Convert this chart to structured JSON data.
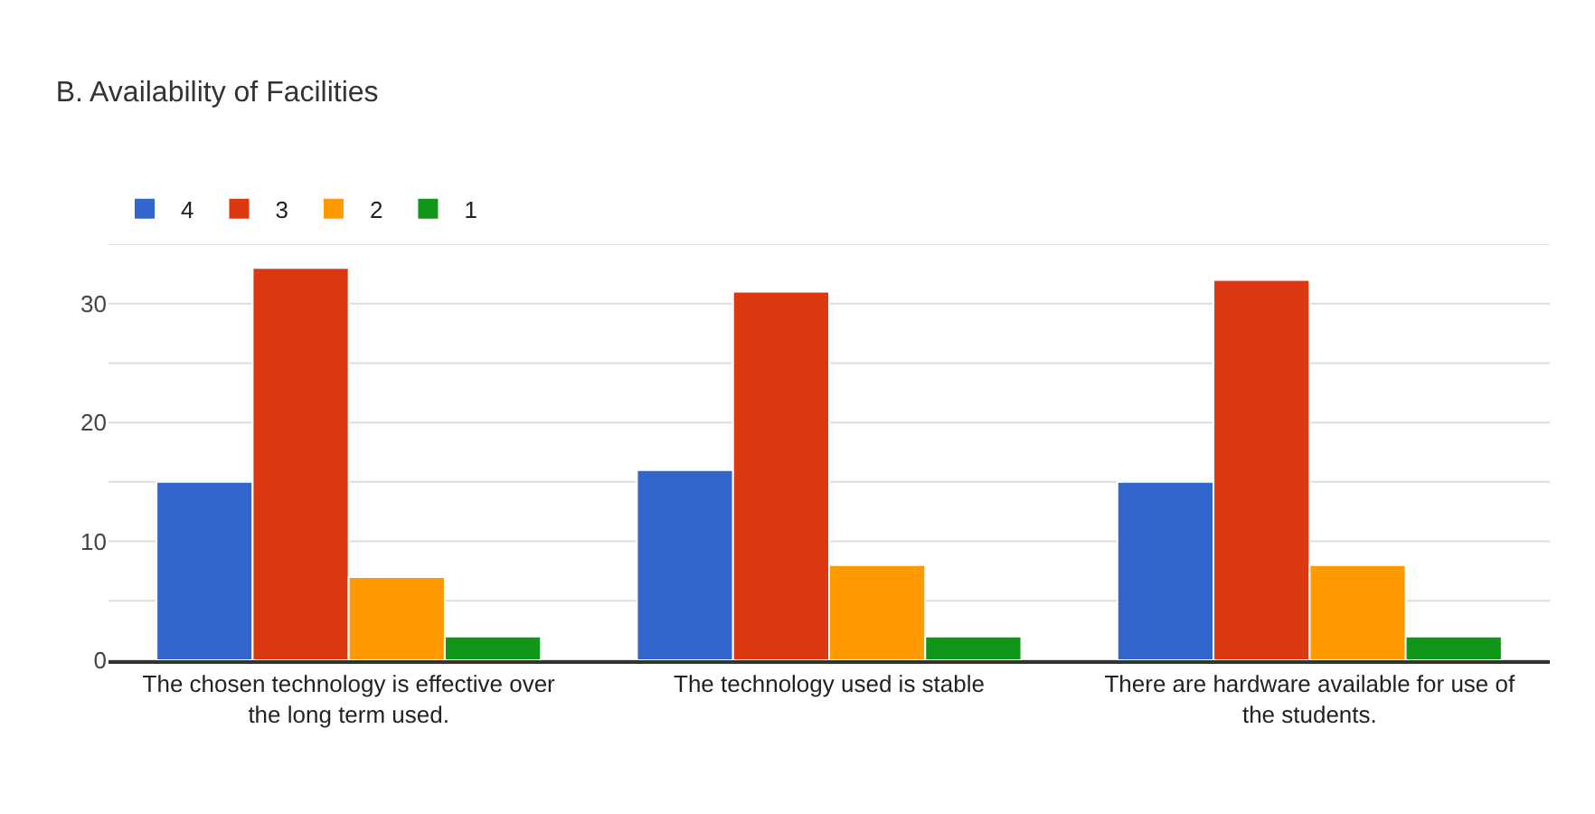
{
  "chart_data": {
    "type": "bar",
    "title": "B. Availability of Facilities",
    "categories": [
      "The chosen technology is effective over the long term used.",
      "The technology used is stable",
      "There are hardware available for use of the students."
    ],
    "series": [
      {
        "name": "4",
        "color": "#3366cc",
        "values": [
          15,
          16,
          15
        ]
      },
      {
        "name": "3",
        "color": "#dc3912",
        "values": [
          33,
          31,
          32
        ]
      },
      {
        "name": "2",
        "color": "#ff9900",
        "values": [
          7,
          8,
          8
        ]
      },
      {
        "name": "1",
        "color": "#109618",
        "values": [
          2,
          2,
          2
        ]
      }
    ],
    "ylim": [
      0,
      35
    ],
    "yticks": [
      0,
      {
        "value": 5,
        "label": null
      },
      10,
      {
        "value": 15,
        "label": null
      },
      20,
      {
        "value": 25,
        "label": null
      },
      30,
      {
        "value": 35,
        "label": null
      }
    ],
    "grid": "y",
    "legend": "top left"
  }
}
